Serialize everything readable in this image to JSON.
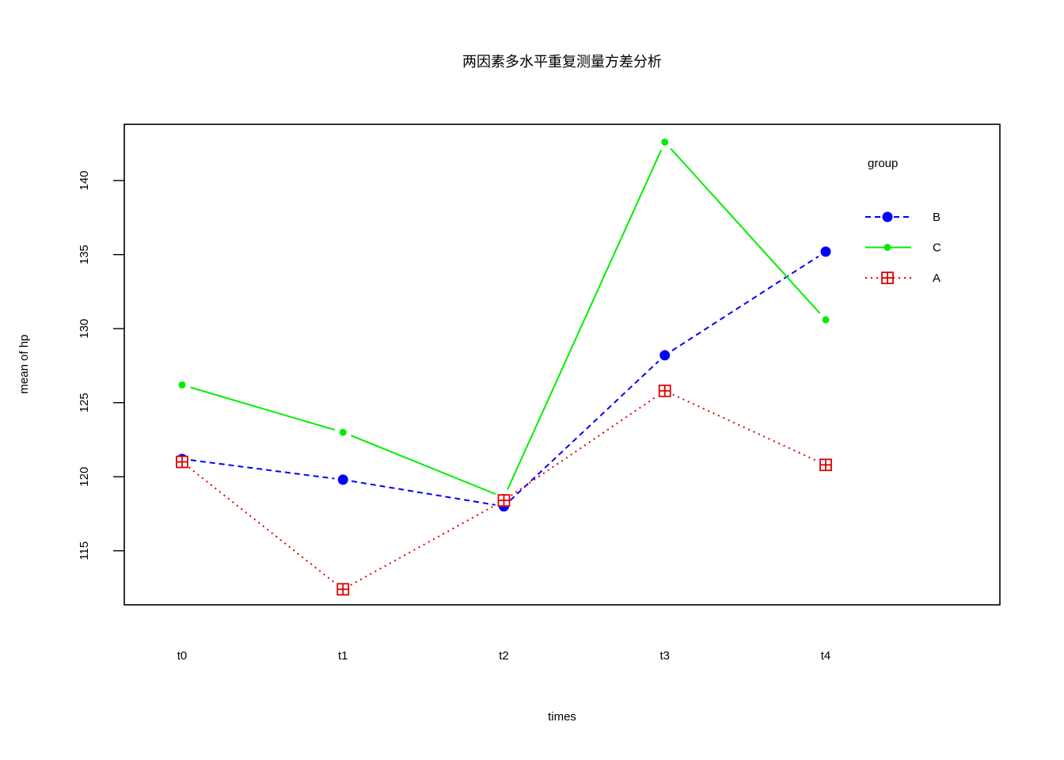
{
  "chart_data": {
    "type": "line",
    "title": "两因素多水平重复测量方差分析",
    "xlabel": "times",
    "ylabel": "mean of  hp",
    "categories": [
      "t0",
      "t1",
      "t2",
      "t3",
      "t4"
    ],
    "yticks": [
      115,
      120,
      125,
      130,
      135,
      140
    ],
    "ylim": [
      111.35,
      143.8
    ],
    "legend": {
      "title": "group",
      "placement": "top-right"
    },
    "series": [
      {
        "name": "B",
        "color": "#0000ff",
        "line_style": "dashed",
        "marker": "filled-circle-large",
        "values": [
          121.2,
          119.8,
          118.0,
          128.2,
          135.2
        ]
      },
      {
        "name": "C",
        "color": "#00ee00",
        "line_style": "solid",
        "marker": "filled-circle-small",
        "values": [
          126.2,
          123.0,
          118.6,
          142.6,
          130.6
        ]
      },
      {
        "name": "A",
        "color": "#dd0000",
        "line_style": "dotted",
        "marker": "boxed-plus",
        "values": [
          121.0,
          112.4,
          118.4,
          125.8,
          120.8
        ]
      }
    ]
  }
}
